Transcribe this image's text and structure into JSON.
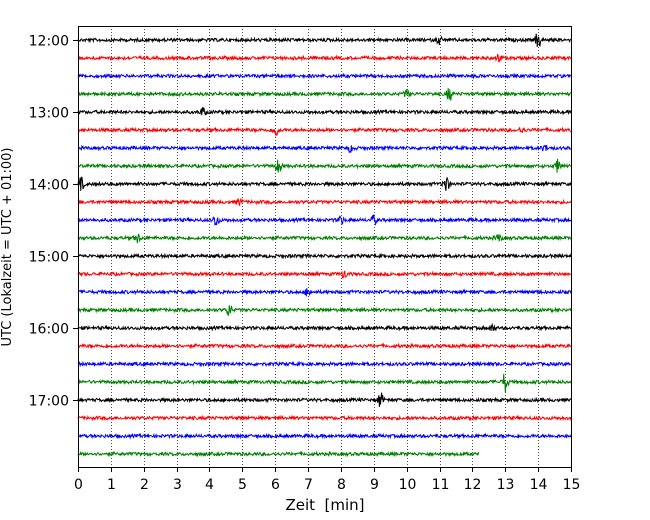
{
  "chart_data": {
    "type": "line",
    "title": "",
    "xlabel": "Zeit  [min]",
    "ylabel": "UTC (Lokalzeit = UTC + 01:00)",
    "xlim": [
      0,
      15
    ],
    "x_ticks": [
      0,
      1,
      2,
      3,
      4,
      5,
      6,
      7,
      8,
      9,
      10,
      11,
      12,
      13,
      14,
      15
    ],
    "x_tick_labels": [
      "0",
      "1",
      "2",
      "3",
      "4",
      "5",
      "6",
      "7",
      "8",
      "9",
      "10",
      "11",
      "12",
      "13",
      "14",
      "15"
    ],
    "y_tick_labels": [
      "12:00",
      "13:00",
      "14:00",
      "15:00",
      "16:00",
      "17:00"
    ],
    "y_tick_row_index": [
      0,
      4,
      8,
      12,
      16,
      20
    ],
    "trace_interval_minutes": 15,
    "grid": "vertical dotted lines at each minute",
    "series": [
      {
        "start": "12:00",
        "color": "#000000",
        "end_min": 15,
        "events": [
          [
            11.0,
            1.3
          ],
          [
            14.0,
            2.8
          ]
        ]
      },
      {
        "start": "12:15",
        "color": "#ff0000",
        "end_min": 15,
        "events": [
          [
            12.8,
            1.2
          ]
        ]
      },
      {
        "start": "12:30",
        "color": "#0000ff",
        "end_min": 15,
        "events": []
      },
      {
        "start": "12:45",
        "color": "#008000",
        "end_min": 15,
        "events": [
          [
            11.3,
            2.2
          ],
          [
            10.0,
            1.2
          ]
        ]
      },
      {
        "start": "13:00",
        "color": "#000000",
        "end_min": 15,
        "events": [
          [
            3.8,
            1.3
          ]
        ]
      },
      {
        "start": "13:15",
        "color": "#ff0000",
        "end_min": 15,
        "events": [
          [
            6.0,
            2.2
          ],
          [
            13.5,
            1.1
          ]
        ]
      },
      {
        "start": "13:30",
        "color": "#0000ff",
        "end_min": 15,
        "events": [
          [
            8.3,
            1.2
          ],
          [
            14.2,
            1.0
          ]
        ]
      },
      {
        "start": "13:45",
        "color": "#008000",
        "end_min": 15,
        "events": [
          [
            6.1,
            2.2
          ],
          [
            14.6,
            2.0
          ]
        ]
      },
      {
        "start": "14:00",
        "color": "#000000",
        "end_min": 15,
        "events": [
          [
            0.1,
            1.9
          ],
          [
            11.2,
            3.0
          ]
        ]
      },
      {
        "start": "14:15",
        "color": "#ff0000",
        "end_min": 15,
        "events": [
          [
            4.9,
            1.1
          ]
        ]
      },
      {
        "start": "14:30",
        "color": "#0000ff",
        "end_min": 15,
        "events": [
          [
            4.2,
            2.0
          ],
          [
            8.0,
            1.2
          ],
          [
            9.0,
            1.4
          ]
        ]
      },
      {
        "start": "14:45",
        "color": "#008000",
        "end_min": 15,
        "events": [
          [
            1.8,
            1.6
          ],
          [
            12.8,
            1.3
          ]
        ]
      },
      {
        "start": "15:00",
        "color": "#000000",
        "end_min": 15,
        "events": []
      },
      {
        "start": "15:15",
        "color": "#ff0000",
        "end_min": 15,
        "events": [
          [
            8.1,
            1.3
          ]
        ]
      },
      {
        "start": "15:30",
        "color": "#0000ff",
        "end_min": 15,
        "events": [
          [
            7.0,
            1.5
          ]
        ]
      },
      {
        "start": "15:45",
        "color": "#008000",
        "end_min": 15,
        "events": [
          [
            4.6,
            2.0
          ]
        ]
      },
      {
        "start": "16:00",
        "color": "#000000",
        "end_min": 15,
        "events": [
          [
            12.6,
            1.2
          ]
        ]
      },
      {
        "start": "16:15",
        "color": "#ff0000",
        "end_min": 15,
        "events": []
      },
      {
        "start": "16:30",
        "color": "#0000ff",
        "end_min": 15,
        "events": []
      },
      {
        "start": "16:45",
        "color": "#008000",
        "end_min": 15,
        "events": [
          [
            13.0,
            3.2
          ]
        ]
      },
      {
        "start": "17:00",
        "color": "#000000",
        "end_min": 15,
        "events": [
          [
            9.2,
            2.4
          ]
        ]
      },
      {
        "start": "17:15",
        "color": "#ff0000",
        "end_min": 15,
        "events": []
      },
      {
        "start": "17:30",
        "color": "#0000ff",
        "end_min": 15,
        "events": []
      },
      {
        "start": "17:45",
        "color": "#008000",
        "end_min": 12.2,
        "events": []
      }
    ]
  }
}
